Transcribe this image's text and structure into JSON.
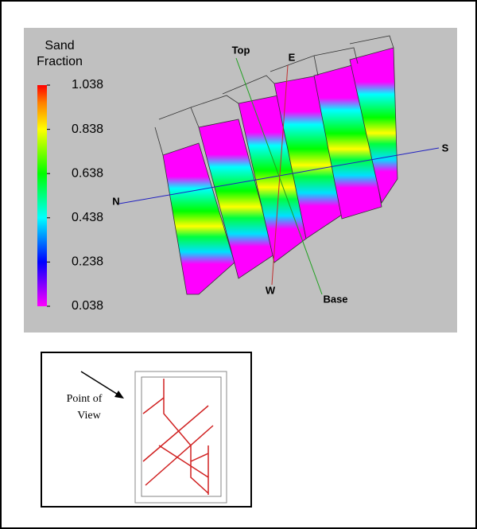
{
  "figure": {
    "colorbar": {
      "title_lines": [
        "Sand",
        "Fraction"
      ],
      "lim": [
        0.038,
        1.038
      ],
      "ticks": [
        1.038,
        0.838,
        0.638,
        0.438,
        0.238,
        0.038
      ]
    },
    "labels": {
      "top": "Top",
      "east": "E",
      "south": "S",
      "north": "N",
      "west": "W",
      "base": "Base"
    },
    "inset": {
      "label_lines": [
        "Point of",
        "View"
      ]
    }
  }
}
